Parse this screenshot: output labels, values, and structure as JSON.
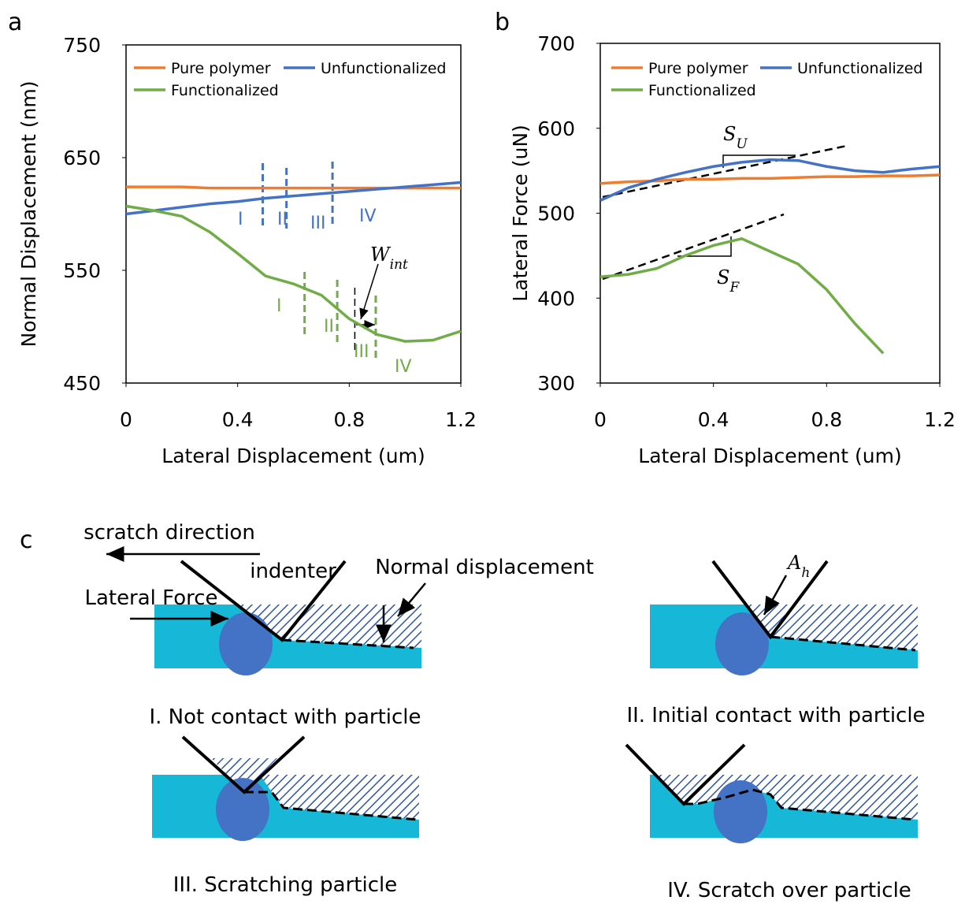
{
  "panel_labels": [
    "a",
    "b",
    "c"
  ],
  "chart_data": [
    {
      "type": "line",
      "y_label": "Normal Displacement (nm)",
      "x_label": "Lateral Displacement (um)",
      "xlim": [
        0,
        1.2
      ],
      "xticks": [
        0,
        0.4,
        0.8,
        1.2
      ],
      "ylim": [
        450,
        750
      ],
      "yticks": [
        450,
        550,
        650,
        750
      ],
      "legend": "upper left",
      "x": [
        0,
        0.1,
        0.2,
        0.3,
        0.4,
        0.5,
        0.6,
        0.7,
        0.8,
        0.9,
        1.0,
        1.1,
        1.2
      ],
      "series": [
        {
          "name": "Pure polymer",
          "color": "#ed7d31",
          "values": [
            624,
            624,
            624,
            623,
            623,
            623,
            623,
            623,
            623,
            623,
            623,
            623,
            623
          ]
        },
        {
          "name": "Unfunctionalized",
          "color": "#4472c4",
          "values": [
            600,
            603,
            606,
            609,
            611,
            614,
            616,
            618,
            620,
            622,
            624,
            626,
            628
          ]
        },
        {
          "name": "Functionalized",
          "color": "#70ad47",
          "values": [
            607,
            603,
            598,
            584,
            565,
            545,
            538,
            528,
            507,
            493,
            487,
            488,
            496
          ]
        }
      ],
      "markers": [
        {
          "x": 0.49,
          "color": "#4472c4"
        },
        {
          "x": 0.575,
          "color": "#4472c4"
        },
        {
          "x": 0.74,
          "color": "#4472c4"
        },
        {
          "x": 0.64,
          "color": "#70ad47"
        },
        {
          "x": 0.757,
          "color": "#70ad47"
        },
        {
          "x": 0.895,
          "color": "#70ad47"
        },
        {
          "x": 0.82,
          "color": "#000000"
        }
      ],
      "annotations": [
        {
          "text": "I",
          "color": "#4472c4"
        },
        {
          "text": "II",
          "color": "#4472c4"
        },
        {
          "text": "III",
          "color": "#4472c4"
        },
        {
          "text": "IV",
          "color": "#4472c4"
        },
        {
          "text": "I",
          "color": "#70ad47"
        },
        {
          "text": "II",
          "color": "#70ad47"
        },
        {
          "text": "III",
          "color": "#70ad47"
        },
        {
          "text": "IV",
          "color": "#70ad47"
        },
        {
          "text": "W",
          "sub": "int",
          "color": "#000000"
        }
      ]
    },
    {
      "type": "line",
      "y_label": "Lateral Force (uN)",
      "x_label": "Lateral Displacement (um)",
      "xlim": [
        0,
        1.2
      ],
      "xticks": [
        0,
        0.4,
        0.8,
        1.2
      ],
      "ylim": [
        300,
        700
      ],
      "yticks": [
        300,
        400,
        500,
        600,
        700
      ],
      "legend": "upper left",
      "x": [
        0,
        0.1,
        0.2,
        0.3,
        0.4,
        0.5,
        0.6,
        0.7,
        0.8,
        0.9,
        1.0,
        1.1,
        1.2
      ],
      "series": [
        {
          "name": "Pure polymer",
          "color": "#ed7d31",
          "values": [
            535,
            537,
            538,
            540,
            540,
            541,
            541,
            542,
            543,
            543,
            544,
            544,
            545
          ]
        },
        {
          "name": "Unfunctionalized",
          "color": "#4472c4",
          "values": [
            515,
            530,
            540,
            548,
            555,
            560,
            563,
            562,
            555,
            550,
            548,
            552,
            555
          ]
        },
        {
          "name": "Functionalized",
          "color": "#70ad47",
          "values": [
            425,
            428,
            435,
            450,
            462,
            470,
            455,
            440,
            410,
            370,
            335,
            null,
            null
          ]
        }
      ],
      "annotations": [
        {
          "text": "S",
          "sub": "U",
          "color": "#000000"
        },
        {
          "text": "S",
          "sub": "F",
          "color": "#000000"
        }
      ]
    }
  ],
  "diagram": {
    "scratch_direction": "scratch direction",
    "indenter": "indenter",
    "normal_displacement": "Normal displacement",
    "lateral_force": "Lateral Force",
    "area": {
      "text": "A",
      "sub": "h"
    },
    "captions": [
      "I. Not contact with particle",
      "II. Initial contact with particle",
      "III. Scratching particle",
      "IV. Scratch over particle"
    ]
  }
}
